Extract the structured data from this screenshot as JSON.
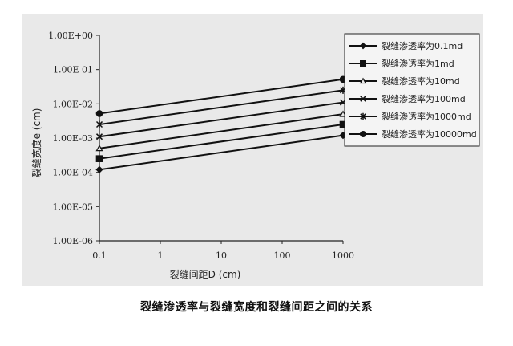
{
  "caption": "裂缝渗透率与裂缝宽度和裂缝间距之间的关系",
  "chart_data": {
    "type": "line",
    "xscale": "log",
    "yscale": "log",
    "xlabel": "裂缝间距D (cm)",
    "ylabel": "裂缝宽度e (cm)",
    "xlim": [
      0.1,
      1000
    ],
    "ylim": [
      1e-06,
      1
    ],
    "xticks": [
      "0.1",
      "1",
      "10",
      "100",
      "1000"
    ],
    "yticks": [
      "1.00E+00",
      "1.00E 01",
      "1.00E-02",
      "1.00E-03",
      "1.00E-04",
      "1.00E-05",
      "1.00E-06"
    ],
    "legend_position": "top-right",
    "grid": false,
    "series": [
      {
        "name": "裂缝渗透率为0.1md",
        "marker": "diamond",
        "x": [
          0.1,
          1000
        ],
        "y": [
          0.00012,
          0.0012
        ]
      },
      {
        "name": "裂缝渗透率为1md",
        "marker": "square",
        "x": [
          0.1,
          1000
        ],
        "y": [
          0.00025,
          0.0025
        ]
      },
      {
        "name": "裂缝渗透率为10md",
        "marker": "triangle",
        "x": [
          0.1,
          1000
        ],
        "y": [
          0.0005,
          0.005
        ]
      },
      {
        "name": "裂缝渗透率为100md",
        "marker": "x",
        "x": [
          0.1,
          1000
        ],
        "y": [
          0.0011,
          0.011
        ]
      },
      {
        "name": "裂缝渗透率为1000md",
        "marker": "star",
        "x": [
          0.1,
          1000
        ],
        "y": [
          0.0025,
          0.025
        ]
      },
      {
        "name": "裂缝渗透率为10000md",
        "marker": "circle",
        "x": [
          0.1,
          1000
        ],
        "y": [
          0.0052,
          0.052
        ]
      }
    ]
  }
}
